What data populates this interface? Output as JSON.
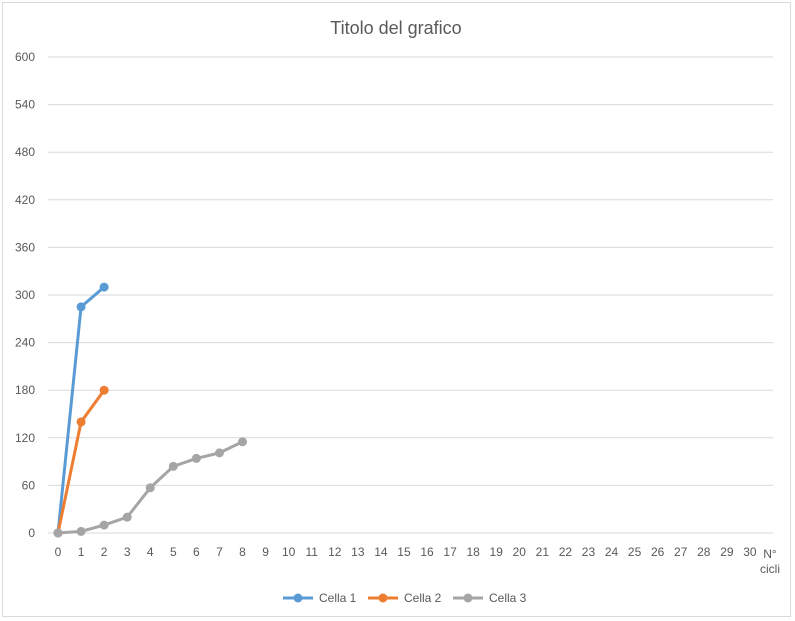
{
  "chart_data": {
    "type": "line",
    "title": "Titolo del grafico",
    "xlabel": "N° cicli",
    "ylabel": "",
    "ylim": [
      0,
      600
    ],
    "yticks": [
      0,
      60,
      120,
      180,
      240,
      300,
      360,
      420,
      480,
      540,
      600
    ],
    "xticks": [
      0,
      1,
      2,
      3,
      4,
      5,
      6,
      7,
      8,
      9,
      10,
      11,
      12,
      13,
      14,
      15,
      16,
      17,
      18,
      19,
      20,
      21,
      22,
      23,
      24,
      25,
      26,
      27,
      28,
      29,
      30
    ],
    "grid": true,
    "legend_position": "bottom",
    "series": [
      {
        "name": "Cella 1",
        "color": "#5B9BD5",
        "x": [
          0,
          1,
          2
        ],
        "values": [
          0,
          285,
          310
        ]
      },
      {
        "name": "Cella 2",
        "color": "#ED7D31",
        "x": [
          0,
          1,
          2
        ],
        "values": [
          0,
          140,
          180
        ]
      },
      {
        "name": "Cella 3",
        "color": "#A5A5A5",
        "x": [
          0,
          1,
          2,
          3,
          4,
          5,
          6,
          7,
          8
        ],
        "values": [
          0,
          2,
          10,
          20,
          57,
          84,
          94,
          101,
          115
        ]
      }
    ]
  }
}
